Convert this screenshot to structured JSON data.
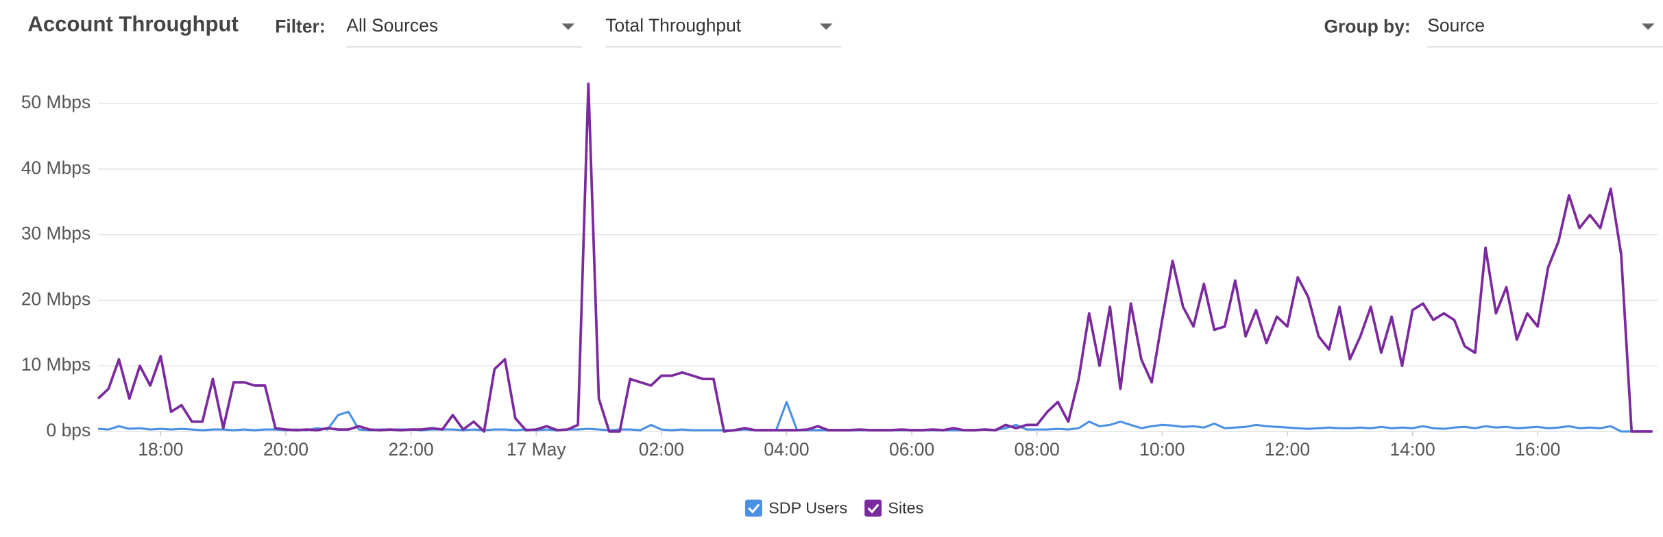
{
  "header": {
    "title": "Account Throughput",
    "filter_label": "Filter:",
    "filter_source": "All Sources",
    "filter_metric": "Total Throughput",
    "group_label": "Group by:",
    "group_value": "Source"
  },
  "chart_data": {
    "type": "line",
    "x": [
      "17:00",
      "17:10",
      "17:20",
      "17:30",
      "17:40",
      "17:50",
      "18:00",
      "18:10",
      "18:20",
      "18:30",
      "18:40",
      "18:50",
      "19:00",
      "19:10",
      "19:20",
      "19:30",
      "19:40",
      "19:50",
      "20:00",
      "20:10",
      "20:20",
      "20:30",
      "20:40",
      "20:50",
      "21:00",
      "21:10",
      "21:20",
      "21:30",
      "21:40",
      "21:50",
      "22:00",
      "22:10",
      "22:20",
      "22:30",
      "22:40",
      "22:50",
      "23:00",
      "23:10",
      "23:20",
      "23:30",
      "23:40",
      "23:50",
      "00:00",
      "00:10",
      "00:20",
      "00:30",
      "00:40",
      "00:50",
      "01:00",
      "01:10",
      "01:20",
      "01:30",
      "01:40",
      "01:50",
      "02:00",
      "02:10",
      "02:20",
      "02:30",
      "02:40",
      "02:50",
      "03:00",
      "03:10",
      "03:20",
      "03:30",
      "03:40",
      "03:50",
      "04:00",
      "04:10",
      "04:20",
      "04:30",
      "04:40",
      "04:50",
      "05:00",
      "05:10",
      "05:20",
      "05:30",
      "05:40",
      "05:50",
      "06:00",
      "06:10",
      "06:20",
      "06:30",
      "06:40",
      "06:50",
      "07:00",
      "07:10",
      "07:20",
      "07:30",
      "07:40",
      "07:50",
      "08:00",
      "08:10",
      "08:20",
      "08:30",
      "08:40",
      "08:50",
      "09:00",
      "09:10",
      "09:20",
      "09:30",
      "09:40",
      "09:50",
      "10:00",
      "10:10",
      "10:20",
      "10:30",
      "10:40",
      "10:50",
      "11:00",
      "11:10",
      "11:20",
      "11:30",
      "11:40",
      "11:50",
      "12:00",
      "12:10",
      "12:20",
      "12:30",
      "12:40",
      "12:50",
      "13:00",
      "13:10",
      "13:20",
      "13:30",
      "13:40",
      "13:50",
      "14:00",
      "14:10",
      "14:20",
      "14:30",
      "14:40",
      "14:50",
      "15:00",
      "15:10",
      "15:20",
      "15:30",
      "15:40",
      "15:50",
      "16:00",
      "16:10",
      "16:20",
      "16:30",
      "16:40",
      "16:50",
      "17:00",
      "17:10",
      "17:20",
      "17:30",
      "17:40",
      "17:50"
    ],
    "series": [
      {
        "name": "SDP Users",
        "color": "#4a90e2",
        "values": [
          0.4,
          0.3,
          0.8,
          0.4,
          0.5,
          0.3,
          0.4,
          0.3,
          0.4,
          0.3,
          0.2,
          0.3,
          0.3,
          0.2,
          0.3,
          0.2,
          0.3,
          0.3,
          0.2,
          0.3,
          0.2,
          0.5,
          0.3,
          2.5,
          3,
          0.3,
          0.2,
          0.3,
          0.3,
          0.3,
          0.3,
          0.2,
          0.3,
          0.3,
          0.3,
          0.2,
          0.3,
          0.2,
          0.3,
          0.3,
          0.2,
          0.3,
          0.2,
          0.3,
          0.2,
          0.3,
          0.3,
          0.4,
          0.3,
          0.2,
          0.3,
          0.3,
          0.2,
          1,
          0.3,
          0.2,
          0.3,
          0.2,
          0.2,
          0.2,
          0.2,
          0.2,
          0.3,
          0.2,
          0.2,
          0.2,
          4.5,
          0.2,
          0.2,
          0.2,
          0.2,
          0.2,
          0.2,
          0.2,
          0.2,
          0.2,
          0.2,
          0.2,
          0.2,
          0.2,
          0.2,
          0.2,
          0.2,
          0.2,
          0.2,
          0.3,
          0.2,
          0.5,
          1,
          0.3,
          0.3,
          0.3,
          0.4,
          0.3,
          0.5,
          1.5,
          0.8,
          1,
          1.5,
          1,
          0.5,
          0.8,
          1,
          0.9,
          0.7,
          0.8,
          0.6,
          1.2,
          0.5,
          0.6,
          0.7,
          1,
          0.8,
          0.7,
          0.6,
          0.5,
          0.4,
          0.5,
          0.6,
          0.5,
          0.5,
          0.6,
          0.5,
          0.7,
          0.5,
          0.6,
          0.5,
          0.8,
          0.5,
          0.4,
          0.6,
          0.7,
          0.5,
          0.8,
          0.6,
          0.7,
          0.5,
          0.6,
          0.7,
          0.5,
          0.6,
          0.8,
          0.5,
          0.6,
          0.5,
          0.8,
          0,
          0,
          0,
          0
        ]
      },
      {
        "name": "Sites",
        "color": "#7b2a9e",
        "values": [
          5,
          6.5,
          11,
          5,
          10,
          7,
          11.5,
          3,
          4,
          1.5,
          1.5,
          8,
          0.5,
          7.5,
          7.5,
          7,
          7,
          0.5,
          0.3,
          0.2,
          0.3,
          0.2,
          0.5,
          0.3,
          0.3,
          0.8,
          0.3,
          0.2,
          0.3,
          0.2,
          0.3,
          0.3,
          0.5,
          0.3,
          2.5,
          0.3,
          1.5,
          0,
          9.5,
          11,
          2,
          0.2,
          0.3,
          0.8,
          0.2,
          0.3,
          1,
          53,
          5,
          0,
          0,
          8,
          7.5,
          7,
          8.5,
          8.5,
          9,
          8.5,
          8,
          8,
          0,
          0.2,
          0.5,
          0.2,
          0.2,
          0.2,
          0.2,
          0.2,
          0.3,
          0.8,
          0.2,
          0.2,
          0.2,
          0.3,
          0.2,
          0.2,
          0.2,
          0.3,
          0.2,
          0.2,
          0.3,
          0.2,
          0.5,
          0.2,
          0.2,
          0.3,
          0.2,
          1,
          0.5,
          1,
          1,
          3,
          4.5,
          1.5,
          8,
          18,
          10,
          19,
          6.5,
          19.5,
          11,
          7.5,
          17,
          26,
          19,
          16,
          22.5,
          15.5,
          16,
          23,
          14.5,
          18.5,
          13.5,
          17.5,
          16,
          23.5,
          20.5,
          14.5,
          12.5,
          19,
          11,
          14.5,
          19,
          12,
          17.5,
          10,
          18.5,
          19.5,
          17,
          18,
          17,
          13,
          12,
          28,
          18,
          22,
          14,
          18,
          16,
          25,
          29,
          36,
          31,
          33,
          31,
          37,
          27,
          0,
          0,
          0
        ]
      }
    ],
    "xlim": [
      "17:00",
      "17:55"
    ],
    "xticks": [
      "18:00",
      "20:00",
      "22:00",
      {
        "value": "00:00",
        "label": "17 May"
      },
      "02:00",
      "04:00",
      "06:00",
      "08:00",
      "10:00",
      "12:00",
      "14:00",
      "16:00"
    ],
    "ylim": [
      0,
      54
    ],
    "yticks": [
      {
        "value": 0,
        "label": "0 bps"
      },
      {
        "value": 10,
        "label": "10 Mbps"
      },
      {
        "value": 20,
        "label": "20 Mbps"
      },
      {
        "value": 30,
        "label": "30 Mbps"
      },
      {
        "value": 40,
        "label": "40 Mbps"
      },
      {
        "value": 50,
        "label": "50 Mbps"
      }
    ],
    "grid": true
  }
}
